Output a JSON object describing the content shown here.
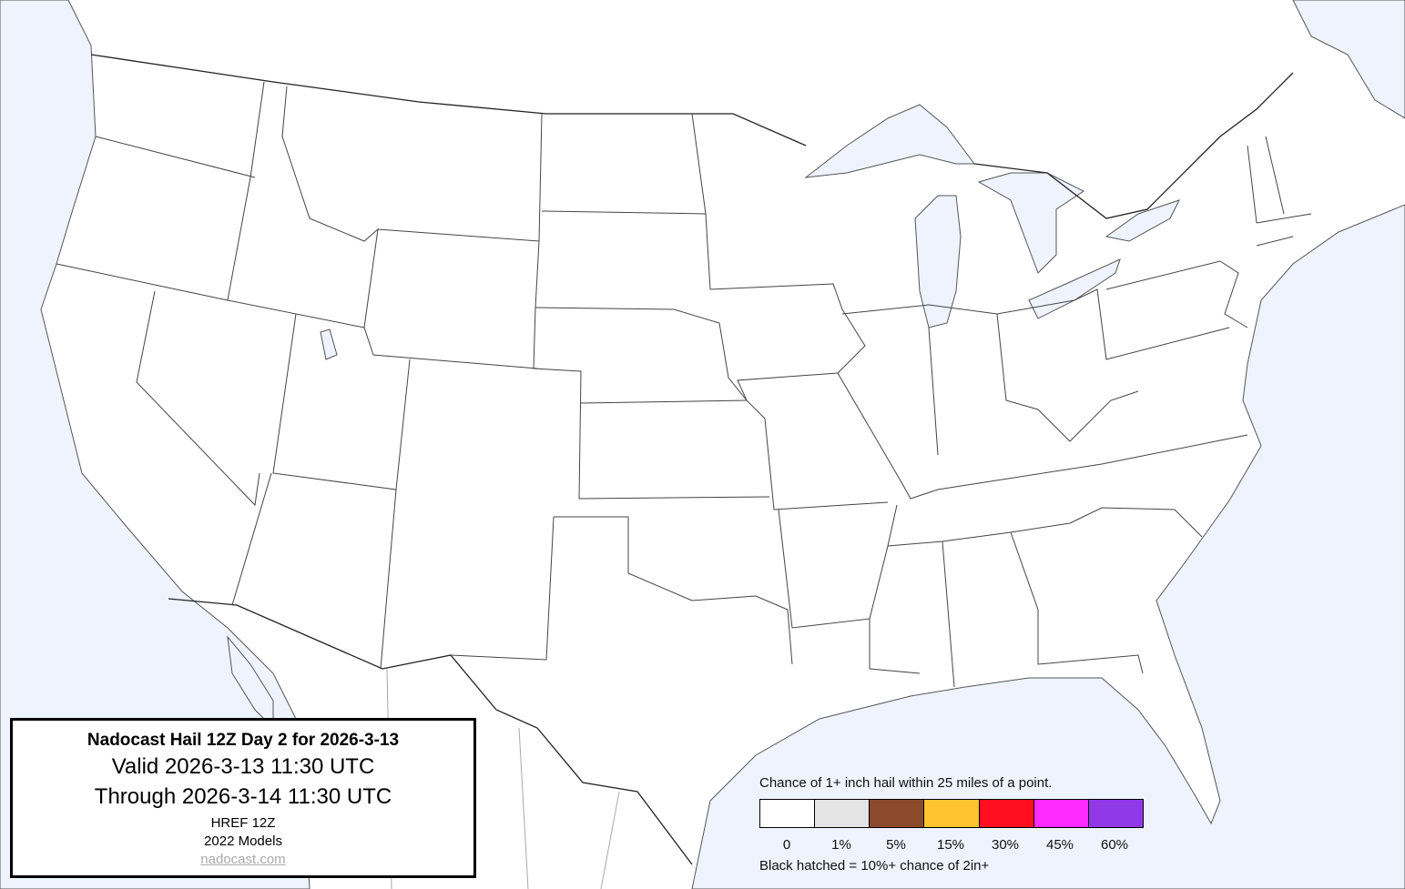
{
  "title_box": {
    "title": "Nadocast Hail 12Z Day 2 for 2026-3-13",
    "valid": "Valid 2026-3-13 11:30 UTC",
    "through": "Through 2026-3-14 11:30 UTC",
    "model": "HREF 12Z",
    "models_version": "2022 Models",
    "link": "nadocast.com"
  },
  "legend": {
    "caption": "Chance of 1+ inch hail within 25 miles of a point.",
    "bins": [
      {
        "label": "0",
        "color": "#ffffff"
      },
      {
        "label": "1%",
        "color": "#e4e4e4"
      },
      {
        "label": "5%",
        "color": "#8b4a2b"
      },
      {
        "label": "15%",
        "color": "#ffc42e"
      },
      {
        "label": "30%",
        "color": "#ff0f1f"
      },
      {
        "label": "45%",
        "color": "#ff2bff"
      },
      {
        "label": "60%",
        "color": "#9138e8"
      }
    ],
    "note": "Black hatched = 10%+ chance of 2in+"
  },
  "colors": {
    "water": "#eef3fe",
    "land": "#ffffff",
    "borders": "#444444"
  }
}
